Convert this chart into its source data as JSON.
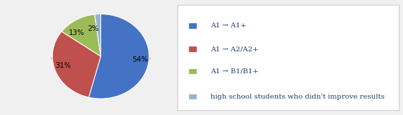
{
  "slices": [
    54,
    31,
    13,
    2
  ],
  "colors": [
    "#4472C4",
    "#C0504D",
    "#9BBB59",
    "#95B3D7"
  ],
  "pct_labels": [
    "54%",
    "31%",
    "13%",
    "2%"
  ],
  "legend_labels": [
    "A1 → A1+",
    "A1 → A2/A2+",
    "A1 → B1/B1+",
    "high school students who didn't improve results"
  ],
  "legend_colors": [
    "#4472C4",
    "#C0504D",
    "#9BBB59",
    "#95B3D7"
  ],
  "startangle": 90,
  "background_color": "#f0f0f0",
  "inner_bg": "#ffffff",
  "label_fontsize": 7.5,
  "legend_fontsize": 7.5,
  "text_color": "#1F3864"
}
